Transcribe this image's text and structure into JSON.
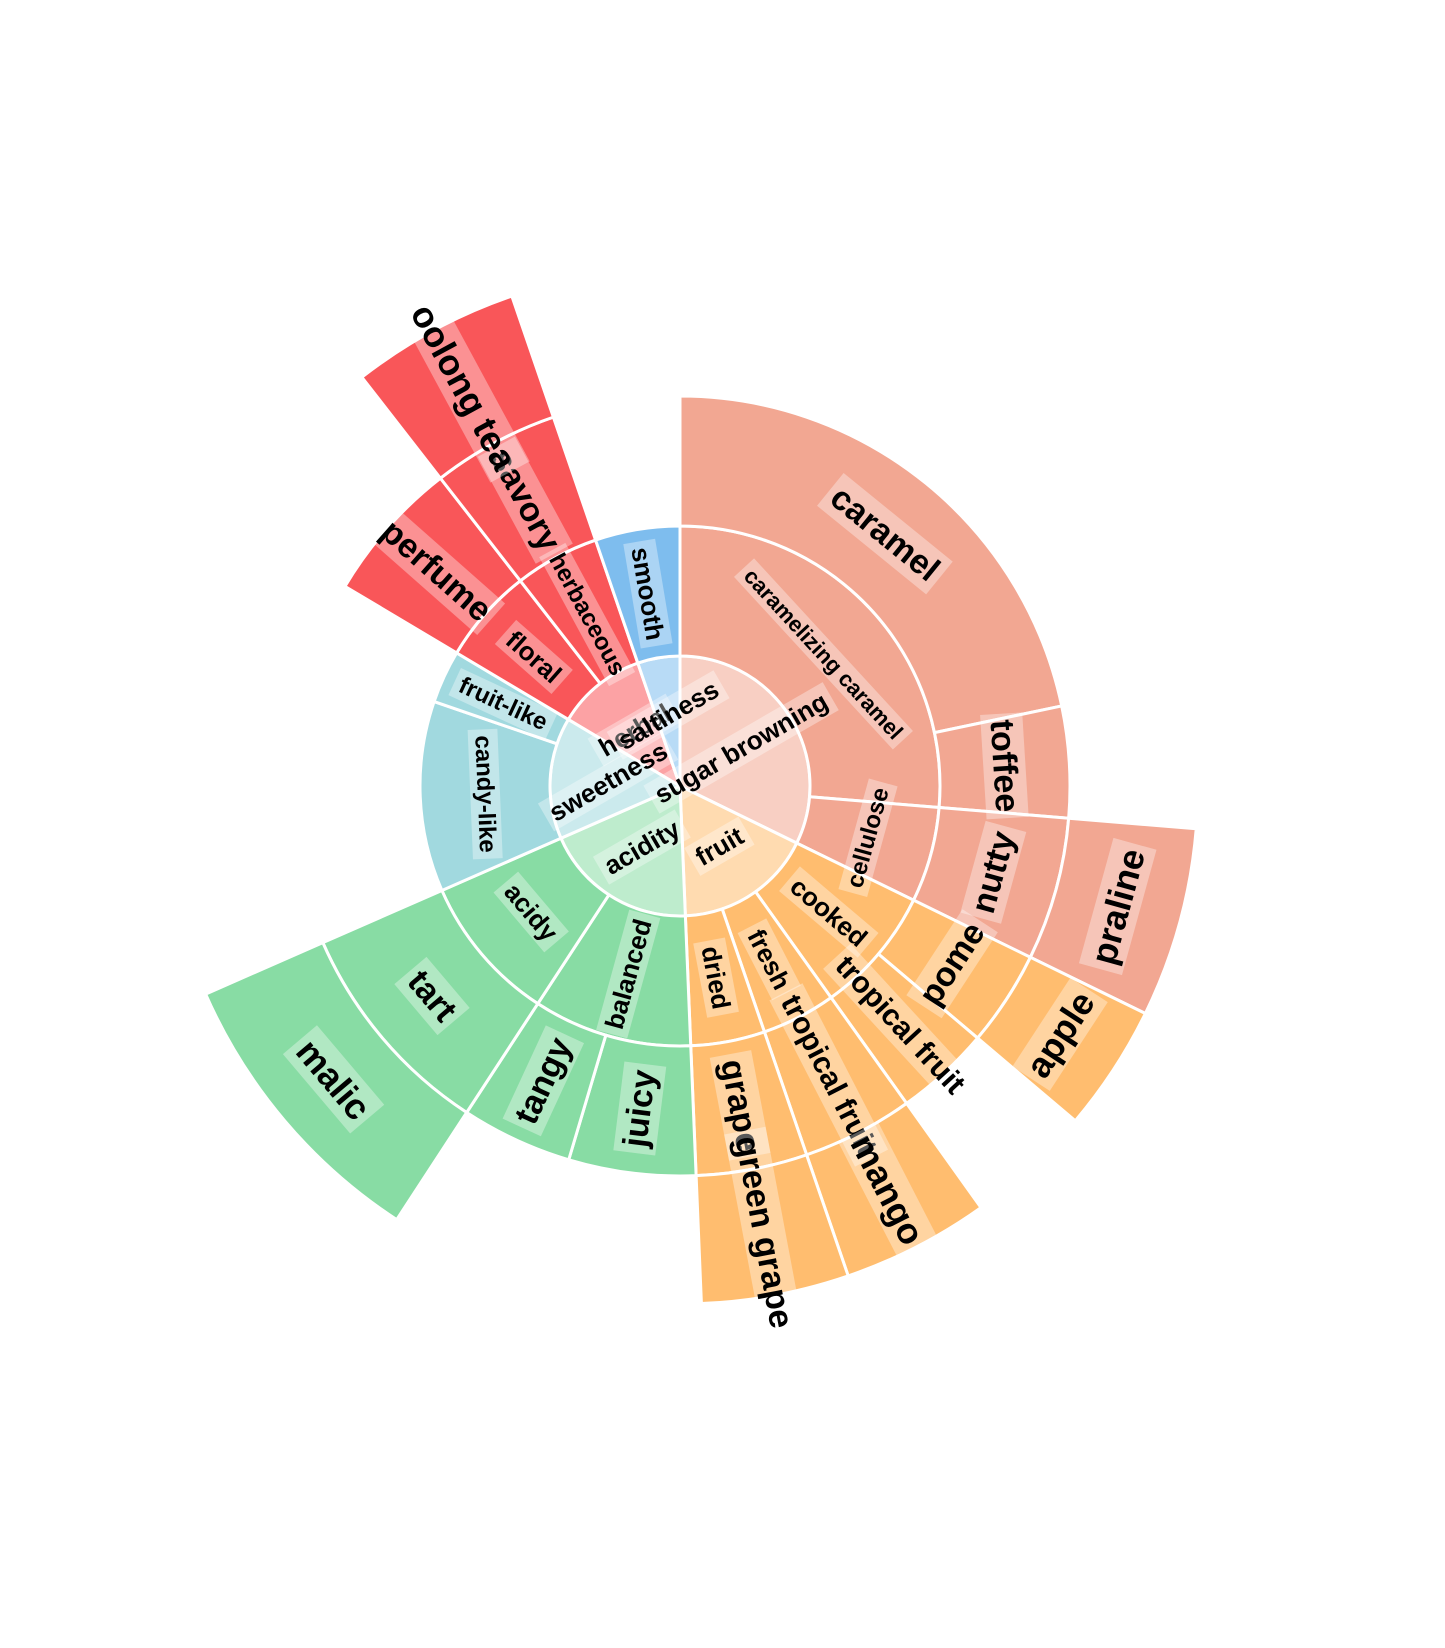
{
  "colors": {
    "acidity": "#88DCA4",
    "sweetness": "#A1D9DF",
    "herbal": "#F95659",
    "saltiness": "#7EBDEE",
    "sugar browning": "#F2A792",
    "fruit": "#FFBD6F"
  },
  "chart_data": {
    "type": "sunburst",
    "title": "",
    "start_angle_deg": 0,
    "root": "",
    "root_children": [
      {
        "name": "sugar browning",
        "value": 49,
        "children": [
          {
            "name": "caramelizing caramel",
            "value": 40,
            "radial": false,
            "children": [
              {
                "name": "caramel",
                "value": 33,
                "radial": false
              },
              {
                "name": "toffee",
                "value": 7,
                "radial": false
              }
            ]
          },
          {
            "name": "cellulose",
            "value": 9,
            "radial": false,
            "children": [
              {
                "name": "nutty",
                "value": 9,
                "radial": false,
                "children": [
                  {
                    "name": "praline",
                    "value": 9,
                    "radial": false
                  }
                ]
              }
            ]
          }
        ]
      },
      {
        "name": "fruit",
        "value": 26,
        "radial": false,
        "children": [
          {
            "name": "cooked",
            "value": 12,
            "radial": true,
            "children": [
              {
                "name": "pome",
                "value": 6,
                "radial": false,
                "children": [
                  {
                    "name": "apple",
                    "value": 6,
                    "radial": false
                  }
                ]
              },
              {
                "name": "tropical fruit",
                "value": 6,
                "radial": true
              }
            ]
          },
          {
            "name": "fresh",
            "value": 7,
            "radial": true,
            "children": [
              {
                "name": "tropical fruit",
                "value": 7,
                "radial": true,
                "children": [
                  {
                    "name": "mango",
                    "value": 7,
                    "radial": true
                  }
                ]
              }
            ]
          },
          {
            "name": "dried",
            "value": 7,
            "radial": true,
            "children": [
              {
                "name": "grape",
                "value": 7,
                "radial": true,
                "children": [
                  {
                    "name": "green grape",
                    "value": 7,
                    "radial": true
                  }
                ]
              }
            ]
          }
        ]
      },
      {
        "name": "acidity",
        "value": 29,
        "radial": false,
        "children": [
          {
            "name": "balanced",
            "value": 15,
            "radial": true,
            "children": [
              {
                "name": "juicy",
                "value": 8,
                "radial": true
              },
              {
                "name": "tangy",
                "value": 7,
                "radial": true
              }
            ]
          },
          {
            "name": "acidy",
            "value": 14,
            "radial": false,
            "children": [
              {
                "name": "tart",
                "value": 14,
                "radial": false,
                "children": [
                  {
                    "name": "malic",
                    "value": 14,
                    "radial": false
                  }
                ]
              }
            ]
          }
        ]
      },
      {
        "name": "sweetness",
        "value": 23,
        "radial": false,
        "children": [
          {
            "name": "candy-like",
            "value": 18,
            "radial": false
          },
          {
            "name": "fruit-like",
            "value": 5,
            "radial": true
          }
        ]
      },
      {
        "name": "herbal",
        "value": 17,
        "radial": true,
        "children": [
          {
            "name": "floral",
            "value": 9,
            "radial": true,
            "children": [
              {
                "name": "perfume",
                "value": 9,
                "radial": true
              }
            ]
          },
          {
            "name": "herbaceous",
            "value": 8,
            "radial": true,
            "children": [
              {
                "name": "savory",
                "value": 8,
                "radial": true,
                "children": [
                  {
                    "name": "oolong tea",
                    "value": 8,
                    "radial": true
                  }
                ]
              }
            ]
          }
        ]
      },
      {
        "name": "saltiness",
        "value": 8,
        "radial": true,
        "children": [
          {
            "name": "smooth",
            "value": 8,
            "radial": true
          }
        ]
      }
    ]
  }
}
